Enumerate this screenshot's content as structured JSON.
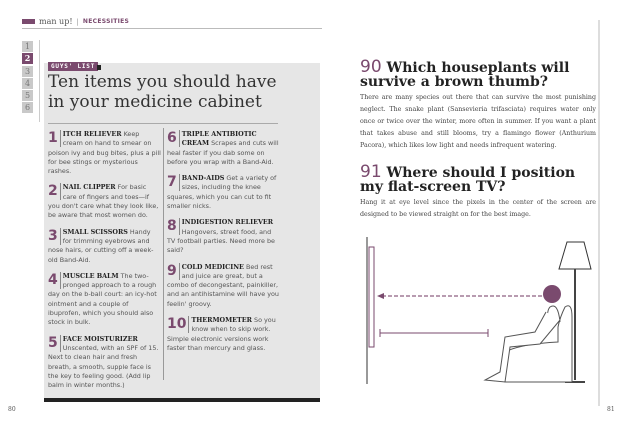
{
  "header": {
    "brand": "man up!",
    "separator": "|",
    "section": "NECESSITIES"
  },
  "sidebar_numbers": [
    "1",
    "2",
    "3",
    "4",
    "5",
    "6"
  ],
  "sidebar_active": "2",
  "left": {
    "tag": "GUYS' LIST",
    "title": "Ten items you should have in your medicine cabinet",
    "items": [
      {
        "num": "1",
        "name": "ITCH RELIEVER",
        "text": " Keep cream on hand to smear on poison ivy and bug bites, plus a pill for bee stings or mysterious rashes."
      },
      {
        "num": "2",
        "name": "NAIL CLIPPER",
        "text": " For basic care of fingers and toes—if you don't care what they look like, be aware that most women do."
      },
      {
        "num": "3",
        "name": "SMALL SCISSORS",
        "text": " Handy for trimming eyebrows and nose hairs, or cutting off a week-old Band-Aid."
      },
      {
        "num": "4",
        "name": "MUSCLE BALM",
        "text": " The two-pronged approach to a rough day on the b-ball court: an icy-hot ointment and a couple of ibuprofen, which you should also stock in bulk."
      },
      {
        "num": "5",
        "name": "FACE MOISTURIZER",
        "text": " Unscented, with an SPF of 15. Next to clean hair and fresh breath, a smooth, supple face is the key to feeling good. (Add lip balm in winter months.)"
      },
      {
        "num": "6",
        "name": "TRIPLE ANTIBIOTIC CREAM",
        "text": " Scrapes and cuts will heal faster if you dab some on before you wrap with a Band-Aid."
      },
      {
        "num": "7",
        "name": "BAND-AIDS",
        "text": " Get a variety of sizes, including the knee squares, which you can cut to fit smaller nicks."
      },
      {
        "num": "8",
        "name": "INDIGESTION RELIEVER",
        "text": " Hangovers, street food, and TV football parties. Need more be said?"
      },
      {
        "num": "9",
        "name": "COLD MEDICINE",
        "text": " Bed rest and juice are great, but a combo of decongestant, painkiller, and an antihistamine will have you feelin' groovy."
      },
      {
        "num": "10",
        "name": "THERMOMETER",
        "text": " So you know when to skip work. Simple electronic versions work faster than mercury and glass."
      }
    ],
    "page_number": "80"
  },
  "right": {
    "q90": {
      "num": "90",
      "title": "Which houseplants will survive a brown thumb?",
      "body": "There are many species out there that can survive the most punishing neglect. The snake plant (Sansevieria trifasciata) requires water only once or twice over the winter, more often in summer. If you want a plant that takes abuse and still blooms, try a flamingo flower (Anthurium Pacora), which likes low light and needs infrequent watering."
    },
    "q91": {
      "num": "91",
      "title": "Where should I position my flat-screen TV?",
      "body": "Hang it at eye level since the pixels in the center of the screen are designed to be viewed straight on for the best image."
    },
    "page_number": "81"
  },
  "colors": {
    "accent": "#7a4a6e",
    "panel": "#e6e6e6"
  }
}
